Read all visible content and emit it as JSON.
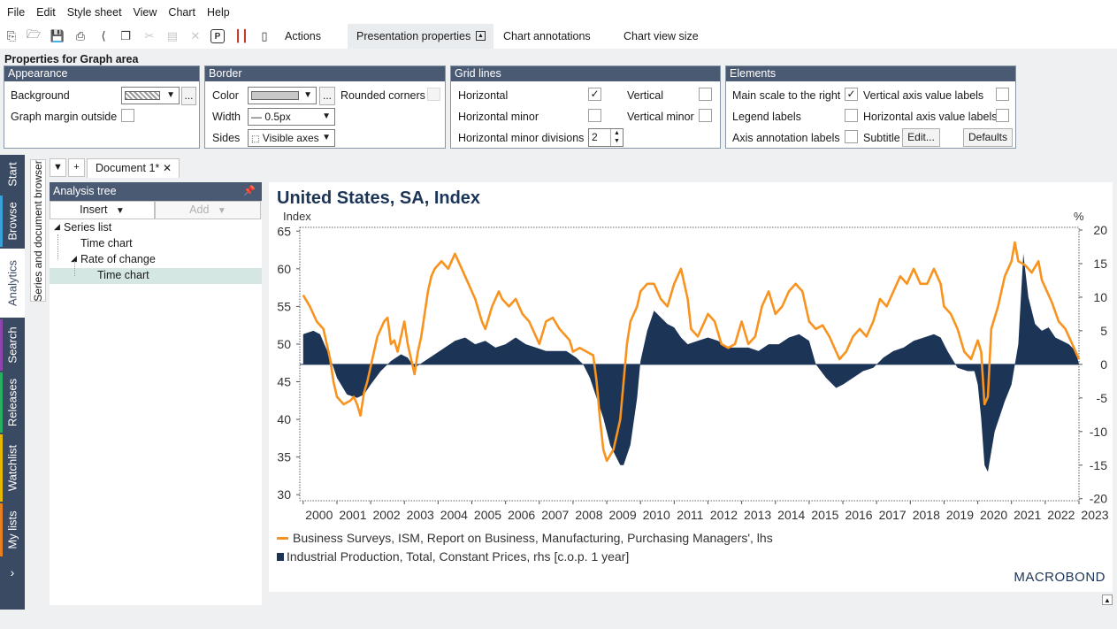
{
  "menu": [
    "File",
    "Edit",
    "Style sheet",
    "View",
    "Chart",
    "Help"
  ],
  "toolbar": {
    "tabs": [
      "Actions",
      "Presentation properties",
      "Chart annotations",
      "Chart view size"
    ]
  },
  "props": {
    "title": "Properties for Graph area",
    "appearance": {
      "header": "Appearance",
      "background_label": "Background",
      "graph_margin_label": "Graph margin outside"
    },
    "border": {
      "header": "Border",
      "color_label": "Color",
      "rounded_label": "Rounded corners",
      "width_label": "Width",
      "width_value": "— 0.5px",
      "sides_label": "Sides",
      "sides_value": "Visible axes"
    },
    "grid": {
      "header": "Grid lines",
      "horizontal": "Horizontal",
      "vertical": "Vertical",
      "horizontal_minor": "Horizontal minor",
      "vertical_minor": "Vertical minor",
      "minor_divisions": "Horizontal minor divisions",
      "minor_divisions_value": "2"
    },
    "elements": {
      "header": "Elements",
      "main_scale": "Main scale to the right",
      "vertical_labels": "Vertical axis value labels",
      "legend_labels": "Legend labels",
      "horizontal_labels": "Horizontal axis value labels",
      "axis_annotation": "Axis annotation labels",
      "subtitle": "Subtitle",
      "edit_button": "Edit...",
      "defaults_button": "Defaults"
    }
  },
  "leftnav": [
    "Start",
    "Browse",
    "Analytics",
    "Search",
    "Releases",
    "Watchlist",
    "My lists"
  ],
  "series_browser_label": "Series and document browser",
  "doc_tab": "Document 1*",
  "analysis_tree": {
    "header": "Analysis tree",
    "insert": "Insert",
    "add": "Add",
    "items": [
      "Series list",
      "Time chart",
      "Rate of change",
      "Time chart"
    ]
  },
  "chart_data": {
    "type": "line",
    "title": "United States, SA, Index",
    "left_unit": "Index",
    "right_unit": "%",
    "x_range": [
      1999.9,
      2023.0
    ],
    "x_ticks": [
      "2000",
      "2001",
      "2002",
      "2003",
      "2004",
      "2005",
      "2006",
      "2007",
      "2008",
      "2009",
      "2010",
      "2011",
      "2012",
      "2013",
      "2014",
      "2015",
      "2016",
      "2017",
      "2018",
      "2019",
      "2020",
      "2021",
      "2022",
      "2023"
    ],
    "left_axis": {
      "range": [
        29.2,
        65.5
      ],
      "ticks": [
        30,
        35,
        40,
        45,
        50,
        55,
        60,
        65
      ]
    },
    "right_axis": {
      "range": [
        -20.3,
        20.4
      ],
      "ticks": [
        -20,
        -15,
        -10,
        -5,
        0,
        5,
        10,
        15,
        20
      ]
    },
    "grid": false,
    "legend_placement": "bottom-left",
    "series": [
      {
        "name": "Business Surveys, ISM, Report on Business, Manufacturing, Purchasing Managers', lhs",
        "axis": "left",
        "color": "#f7931e",
        "kind": "line",
        "points": [
          [
            2000.0,
            56.5
          ],
          [
            2000.2,
            55
          ],
          [
            2000.4,
            53
          ],
          [
            2000.6,
            52
          ],
          [
            2000.8,
            48
          ],
          [
            2000.9,
            45
          ],
          [
            2001.0,
            43
          ],
          [
            2001.2,
            42
          ],
          [
            2001.4,
            42.5
          ],
          [
            2001.5,
            43
          ],
          [
            2001.6,
            42
          ],
          [
            2001.7,
            40.5
          ],
          [
            2001.8,
            43.5
          ],
          [
            2001.9,
            45
          ],
          [
            2002.0,
            47
          ],
          [
            2002.2,
            51
          ],
          [
            2002.4,
            53
          ],
          [
            2002.5,
            53.5
          ],
          [
            2002.6,
            50
          ],
          [
            2002.7,
            50.5
          ],
          [
            2002.8,
            49
          ],
          [
            2003.0,
            53
          ],
          [
            2003.1,
            50
          ],
          [
            2003.3,
            46
          ],
          [
            2003.4,
            49
          ],
          [
            2003.5,
            51
          ],
          [
            2003.6,
            54
          ],
          [
            2003.7,
            57
          ],
          [
            2003.8,
            59
          ],
          [
            2003.9,
            60
          ],
          [
            2004.1,
            61
          ],
          [
            2004.3,
            60
          ],
          [
            2004.5,
            62
          ],
          [
            2004.7,
            60
          ],
          [
            2004.9,
            58
          ],
          [
            2005.1,
            56
          ],
          [
            2005.3,
            53
          ],
          [
            2005.4,
            52
          ],
          [
            2005.6,
            55
          ],
          [
            2005.8,
            57
          ],
          [
            2005.9,
            56
          ],
          [
            2006.1,
            55
          ],
          [
            2006.3,
            56
          ],
          [
            2006.5,
            54
          ],
          [
            2006.7,
            53
          ],
          [
            2006.9,
            51
          ],
          [
            2007.0,
            50
          ],
          [
            2007.2,
            53
          ],
          [
            2007.4,
            53.5
          ],
          [
            2007.6,
            52
          ],
          [
            2007.8,
            51
          ],
          [
            2007.9,
            50.5
          ],
          [
            2008.0,
            49
          ],
          [
            2008.2,
            49.5
          ],
          [
            2008.4,
            49
          ],
          [
            2008.6,
            48.5
          ],
          [
            2008.7,
            45
          ],
          [
            2008.8,
            40
          ],
          [
            2008.9,
            36
          ],
          [
            2009.0,
            34.5
          ],
          [
            2009.2,
            36
          ],
          [
            2009.4,
            40
          ],
          [
            2009.5,
            45
          ],
          [
            2009.6,
            50
          ],
          [
            2009.7,
            53
          ],
          [
            2009.9,
            55
          ],
          [
            2010.0,
            57
          ],
          [
            2010.2,
            58
          ],
          [
            2010.4,
            58
          ],
          [
            2010.6,
            56
          ],
          [
            2010.8,
            55
          ],
          [
            2011.0,
            58
          ],
          [
            2011.2,
            60
          ],
          [
            2011.4,
            56
          ],
          [
            2011.5,
            52
          ],
          [
            2011.7,
            51
          ],
          [
            2011.9,
            53
          ],
          [
            2012.0,
            54
          ],
          [
            2012.2,
            53
          ],
          [
            2012.4,
            50
          ],
          [
            2012.6,
            49.5
          ],
          [
            2012.8,
            50
          ],
          [
            2013.0,
            53
          ],
          [
            2013.2,
            50
          ],
          [
            2013.4,
            51
          ],
          [
            2013.6,
            55
          ],
          [
            2013.8,
            57
          ],
          [
            2014.0,
            54
          ],
          [
            2014.2,
            55
          ],
          [
            2014.4,
            57
          ],
          [
            2014.6,
            58
          ],
          [
            2014.8,
            57
          ],
          [
            2015.0,
            53
          ],
          [
            2015.2,
            52
          ],
          [
            2015.4,
            52.5
          ],
          [
            2015.6,
            51
          ],
          [
            2015.8,
            49
          ],
          [
            2015.9,
            48
          ],
          [
            2016.1,
            49
          ],
          [
            2016.3,
            51
          ],
          [
            2016.5,
            52
          ],
          [
            2016.7,
            51
          ],
          [
            2016.9,
            53
          ],
          [
            2017.1,
            56
          ],
          [
            2017.3,
            55
          ],
          [
            2017.5,
            57
          ],
          [
            2017.7,
            59
          ],
          [
            2017.9,
            58
          ],
          [
            2018.1,
            60
          ],
          [
            2018.3,
            58
          ],
          [
            2018.5,
            58
          ],
          [
            2018.7,
            60
          ],
          [
            2018.9,
            58
          ],
          [
            2019.0,
            55
          ],
          [
            2019.2,
            54
          ],
          [
            2019.4,
            52
          ],
          [
            2019.6,
            49
          ],
          [
            2019.8,
            48
          ],
          [
            2020.0,
            50.5
          ],
          [
            2020.1,
            49
          ],
          [
            2020.2,
            42
          ],
          [
            2020.3,
            43
          ],
          [
            2020.4,
            52
          ],
          [
            2020.6,
            55
          ],
          [
            2020.8,
            59
          ],
          [
            2021.0,
            61
          ],
          [
            2021.1,
            63.5
          ],
          [
            2021.2,
            61
          ],
          [
            2021.4,
            60.5
          ],
          [
            2021.6,
            59.5
          ],
          [
            2021.8,
            61
          ],
          [
            2021.9,
            58.5
          ],
          [
            2022.0,
            57.5
          ],
          [
            2022.2,
            55.5
          ],
          [
            2022.4,
            53
          ],
          [
            2022.6,
            52
          ],
          [
            2022.8,
            50
          ],
          [
            2022.9,
            49
          ],
          [
            2023.0,
            48
          ]
        ]
      },
      {
        "name": "Industrial Production, Total, Constant Prices, rhs [c.o.p. 1 year]",
        "axis": "right",
        "color": "#1c3557",
        "kind": "area",
        "points": [
          [
            2000.0,
            4.5
          ],
          [
            2000.3,
            5
          ],
          [
            2000.5,
            4.5
          ],
          [
            2000.8,
            1
          ],
          [
            2001.0,
            -2
          ],
          [
            2001.3,
            -4.5
          ],
          [
            2001.6,
            -5
          ],
          [
            2001.8,
            -4.5
          ],
          [
            2002.0,
            -3
          ],
          [
            2002.3,
            -1
          ],
          [
            2002.6,
            0.5
          ],
          [
            2002.9,
            1.5
          ],
          [
            2003.1,
            1
          ],
          [
            2003.3,
            -0.5
          ],
          [
            2003.6,
            0.5
          ],
          [
            2003.9,
            1.5
          ],
          [
            2004.2,
            2.5
          ],
          [
            2004.5,
            3.5
          ],
          [
            2004.8,
            4
          ],
          [
            2005.1,
            3
          ],
          [
            2005.4,
            3.5
          ],
          [
            2005.7,
            2.5
          ],
          [
            2006.0,
            3
          ],
          [
            2006.3,
            4
          ],
          [
            2006.6,
            3
          ],
          [
            2006.9,
            2.5
          ],
          [
            2007.2,
            2
          ],
          [
            2007.5,
            2
          ],
          [
            2007.8,
            2
          ],
          [
            2008.1,
            1
          ],
          [
            2008.3,
            0
          ],
          [
            2008.5,
            -2
          ],
          [
            2008.7,
            -5
          ],
          [
            2008.9,
            -8
          ],
          [
            2009.1,
            -12
          ],
          [
            2009.3,
            -14
          ],
          [
            2009.4,
            -15
          ],
          [
            2009.5,
            -15
          ],
          [
            2009.7,
            -12
          ],
          [
            2009.9,
            -5
          ],
          [
            2010.0,
            0.5
          ],
          [
            2010.2,
            5
          ],
          [
            2010.4,
            8
          ],
          [
            2010.6,
            7
          ],
          [
            2010.8,
            6
          ],
          [
            2011.0,
            5.5
          ],
          [
            2011.2,
            4
          ],
          [
            2011.4,
            3
          ],
          [
            2011.7,
            3.5
          ],
          [
            2012.0,
            4
          ],
          [
            2012.3,
            3.5
          ],
          [
            2012.6,
            2.5
          ],
          [
            2012.9,
            2.5
          ],
          [
            2013.2,
            2.5
          ],
          [
            2013.5,
            2
          ],
          [
            2013.8,
            3
          ],
          [
            2014.1,
            3
          ],
          [
            2014.4,
            4
          ],
          [
            2014.7,
            4.5
          ],
          [
            2015.0,
            3.5
          ],
          [
            2015.2,
            0
          ],
          [
            2015.5,
            -2
          ],
          [
            2015.8,
            -3.5
          ],
          [
            2016.0,
            -3
          ],
          [
            2016.3,
            -2
          ],
          [
            2016.6,
            -1
          ],
          [
            2016.9,
            -0.5
          ],
          [
            2017.2,
            1
          ],
          [
            2017.5,
            2
          ],
          [
            2017.8,
            2.5
          ],
          [
            2018.1,
            3.5
          ],
          [
            2018.4,
            4
          ],
          [
            2018.7,
            4.5
          ],
          [
            2018.9,
            4
          ],
          [
            2019.1,
            2
          ],
          [
            2019.4,
            -0.5
          ],
          [
            2019.7,
            -1
          ],
          [
            2019.9,
            -1
          ],
          [
            2020.0,
            -3
          ],
          [
            2020.1,
            -8
          ],
          [
            2020.2,
            -15
          ],
          [
            2020.3,
            -16
          ],
          [
            2020.5,
            -10
          ],
          [
            2020.7,
            -7
          ],
          [
            2020.8,
            -5.5
          ],
          [
            2021.0,
            -3
          ],
          [
            2021.2,
            3
          ],
          [
            2021.3,
            12
          ],
          [
            2021.35,
            16.5
          ],
          [
            2021.5,
            10
          ],
          [
            2021.7,
            6
          ],
          [
            2021.9,
            5
          ],
          [
            2022.1,
            5.5
          ],
          [
            2022.3,
            4
          ],
          [
            2022.5,
            3.5
          ],
          [
            2022.7,
            3
          ],
          [
            2022.9,
            2
          ],
          [
            2023.0,
            0
          ]
        ]
      }
    ]
  },
  "logo": "MACROBOND"
}
